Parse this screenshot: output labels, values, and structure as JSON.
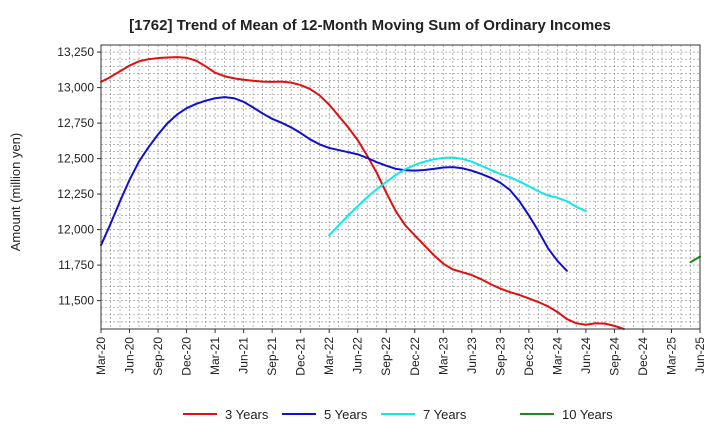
{
  "chart_data": {
    "type": "line",
    "title": "[1762]  Trend of Mean of 12-Month Moving Sum of Ordinary Incomes",
    "ylabel": "Amount (million yen)",
    "xlabel": "",
    "grid": true,
    "ylim": [
      11300,
      13300
    ],
    "y_ticks": [
      11500,
      11750,
      12000,
      12250,
      12500,
      12750,
      13000,
      13250
    ],
    "y_tick_labels": [
      "11,500",
      "11,750",
      "12,000",
      "12,250",
      "12,500",
      "12,750",
      "13,000",
      "13,250"
    ],
    "x_tick_labels": [
      "Mar-20",
      "Jun-20",
      "Sep-20",
      "Dec-20",
      "Mar-21",
      "Jun-21",
      "Sep-21",
      "Dec-21",
      "Mar-22",
      "Jun-22",
      "Sep-22",
      "Dec-22",
      "Mar-23",
      "Jun-23",
      "Sep-23",
      "Dec-23",
      "Mar-24",
      "Jun-24",
      "Sep-24",
      "Dec-24",
      "Mar-25",
      "Jun-25"
    ],
    "x_count": 64,
    "series": [
      {
        "name": "3 Years",
        "color": "#e01010",
        "start_index": 0,
        "values": [
          13040,
          13075,
          13115,
          13155,
          13185,
          13200,
          13208,
          13212,
          13215,
          13210,
          13190,
          13150,
          13105,
          13080,
          13065,
          13055,
          13048,
          13042,
          13040,
          13042,
          13035,
          13018,
          12990,
          12945,
          12880,
          12800,
          12720,
          12630,
          12520,
          12400,
          12260,
          12130,
          12030,
          11960,
          11890,
          11820,
          11760,
          11720,
          11700,
          11680,
          11650,
          11615,
          11585,
          11560,
          11540,
          11515,
          11490,
          11460,
          11420,
          11370,
          11340,
          11330,
          11340,
          11338,
          11322,
          11300
        ]
      },
      {
        "name": "5 Years",
        "color": "#1010d0",
        "start_index": 0,
        "values": [
          11890,
          12040,
          12200,
          12350,
          12480,
          12580,
          12670,
          12750,
          12810,
          12855,
          12885,
          12908,
          12925,
          12933,
          12925,
          12900,
          12860,
          12818,
          12780,
          12752,
          12720,
          12680,
          12635,
          12600,
          12575,
          12560,
          12545,
          12530,
          12505,
          12475,
          12450,
          12428,
          12418,
          12415,
          12420,
          12428,
          12437,
          12440,
          12432,
          12415,
          12392,
          12365,
          12330,
          12280,
          12200,
          12100,
          11990,
          11870,
          11780,
          11710
        ]
      },
      {
        "name": "7 Years",
        "color": "#10e6ee",
        "start_index": 24,
        "values": [
          11960,
          12030,
          12100,
          12165,
          12228,
          12285,
          12335,
          12385,
          12425,
          12455,
          12478,
          12495,
          12505,
          12508,
          12498,
          12478,
          12450,
          12420,
          12392,
          12368,
          12340,
          12305,
          12270,
          12240,
          12225,
          12200,
          12160,
          12130
        ]
      },
      {
        "name": "10 Years",
        "color": "#1a8c1a",
        "start_index": 62,
        "values": [
          11770,
          11810
        ]
      }
    ]
  },
  "legend": {
    "items": [
      {
        "label": "3 Years",
        "color": "#e01010"
      },
      {
        "label": "5 Years",
        "color": "#1010d0"
      },
      {
        "label": "7 Years",
        "color": "#10e6ee"
      },
      {
        "label": "10 Years",
        "color": "#1a8c1a"
      }
    ]
  }
}
